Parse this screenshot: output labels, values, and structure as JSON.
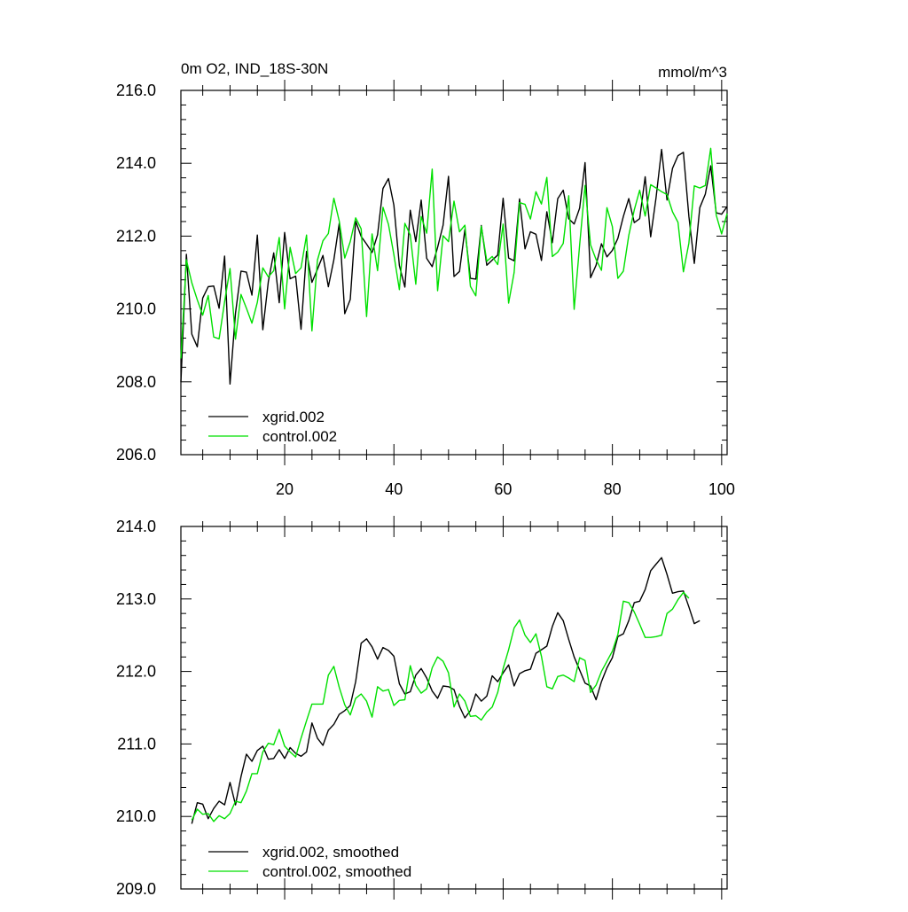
{
  "colors": {
    "xgrid": "#000000",
    "control": "#00e000"
  },
  "chart_data": [
    {
      "type": "line",
      "title": "0m O2, IND_18S-30N",
      "units": "mmol/m^3",
      "xlim": [
        1,
        101
      ],
      "ylim": [
        206.0,
        216.0
      ],
      "xticks": [
        20,
        40,
        60,
        80,
        100
      ],
      "xtick_labels": [
        "20",
        "40",
        "60",
        "80",
        "100"
      ],
      "yticks": [
        206.0,
        208.0,
        210.0,
        212.0,
        214.0,
        216.0
      ],
      "ytick_labels": [
        "206.0",
        "208.0",
        "210.0",
        "212.0",
        "214.0",
        "216.0"
      ],
      "legend_position": "bottom-left",
      "x_start": 1,
      "series": [
        {
          "name": "xgrid.002",
          "color": "#000000",
          "values": [
            207.99,
            211.5,
            209.31,
            208.96,
            210.3,
            210.61,
            210.63,
            210.02,
            211.45,
            207.94,
            209.89,
            211.04,
            211.01,
            210.38,
            212.03,
            209.43,
            210.75,
            211.54,
            210.17,
            212.1,
            210.83,
            210.9,
            209.44,
            211.58,
            210.73,
            211.09,
            211.47,
            210.61,
            211.35,
            212.35,
            209.87,
            210.26,
            212.41,
            211.99,
            211.78,
            211.55,
            212.04,
            213.31,
            213.58,
            212.85,
            211.19,
            210.6,
            212.71,
            211.85,
            212.99,
            211.39,
            211.16,
            211.69,
            212.3,
            213.64,
            210.89,
            211.03,
            212.18,
            210.84,
            210.82,
            212.29,
            211.2,
            211.34,
            211.48,
            213.04,
            211.4,
            211.32,
            213.02,
            211.65,
            212.12,
            212.05,
            211.33,
            212.67,
            211.82,
            213.03,
            213.26,
            212.48,
            212.33,
            212.77,
            214.02,
            210.86,
            211.2,
            211.79,
            211.43,
            211.61,
            211.94,
            212.54,
            213.03,
            212.37,
            212.48,
            213.63,
            211.98,
            213.06,
            214.38,
            212.99,
            213.86,
            214.21,
            214.3,
            212.54,
            211.25,
            212.78,
            213.15,
            213.93,
            212.64,
            212.6,
            212.81
          ]
        },
        {
          "name": "control.002",
          "color": "#00e000",
          "values": [
            208.64,
            211.35,
            210.72,
            210.25,
            209.83,
            210.37,
            209.23,
            209.18,
            210.2,
            211.11,
            209.17,
            210.4,
            210.02,
            209.61,
            210.18,
            211.13,
            210.88,
            211.05,
            211.96,
            210.0,
            211.69,
            210.97,
            211.13,
            212.03,
            209.4,
            211.34,
            211.87,
            212.07,
            213.04,
            212.41,
            211.4,
            211.85,
            212.5,
            212.2,
            209.79,
            212.06,
            211.05,
            212.79,
            212.32,
            211.49,
            210.53,
            212.35,
            212.03,
            210.68,
            212.54,
            212.08,
            213.84,
            210.5,
            212.01,
            211.85,
            212.96,
            212.12,
            212.3,
            210.62,
            210.36,
            212.27,
            211.31,
            211.44,
            211.22,
            212.33,
            210.16,
            211.0,
            212.92,
            212.87,
            212.47,
            213.22,
            212.88,
            213.61,
            211.44,
            211.56,
            211.8,
            213.11,
            209.99,
            211.76,
            213.39,
            211.76,
            211.36,
            211.06,
            212.78,
            212.26,
            210.84,
            211.04,
            212.02,
            212.72,
            213.26,
            212.55,
            213.41,
            213.32,
            213.22,
            213.14,
            212.67,
            212.38,
            211.02,
            211.81,
            213.38,
            213.32,
            213.39,
            214.41,
            212.58,
            212.06,
            212.62
          ]
        }
      ]
    },
    {
      "type": "line",
      "xlim": [
        1,
        101
      ],
      "ylim": [
        209.0,
        214.0
      ],
      "xticks": [
        20,
        40,
        60,
        80,
        100
      ],
      "yticks": [
        209.0,
        210.0,
        211.0,
        212.0,
        213.0,
        214.0
      ],
      "ytick_labels": [
        "209.0",
        "210.0",
        "211.0",
        "212.0",
        "213.0",
        "214.0"
      ],
      "legend_position": "bottom-left",
      "x_start": 3,
      "series": [
        {
          "name": "xgrid.002, smoothed",
          "color": "#000000",
          "values": [
            209.9,
            210.19,
            210.17,
            209.97,
            210.11,
            210.21,
            210.16,
            210.47,
            210.16,
            210.55,
            210.86,
            210.76,
            210.91,
            210.97,
            210.79,
            210.8,
            210.92,
            210.8,
            210.95,
            210.87,
            210.83,
            210.89,
            211.29,
            211.08,
            210.98,
            211.19,
            211.27,
            211.41,
            211.46,
            211.53,
            211.86,
            212.39,
            212.45,
            212.34,
            212.17,
            212.33,
            212.29,
            212.21,
            211.83,
            211.69,
            211.72,
            211.95,
            212.04,
            211.91,
            211.73,
            211.63,
            211.8,
            211.79,
            211.75,
            211.52,
            211.36,
            211.46,
            211.69,
            211.59,
            211.66,
            211.94,
            211.86,
            211.98,
            212.09,
            211.8,
            211.97,
            212.01,
            212.03,
            212.25,
            212.3,
            212.35,
            212.62,
            212.81,
            212.7,
            212.44,
            212.2,
            212.02,
            211.84,
            211.8,
            211.61,
            211.86,
            212.05,
            212.19,
            212.48,
            212.52,
            212.7,
            212.95,
            212.97,
            213.13,
            213.39,
            213.48,
            213.57,
            213.34,
            213.08,
            213.1,
            213.11,
            212.89,
            212.66,
            212.7
          ]
        },
        {
          "name": "control.002, smoothed",
          "color": "#00e000",
          "values": [
            209.95,
            210.1,
            210.03,
            210.04,
            209.93,
            210.01,
            209.97,
            210.04,
            210.21,
            210.19,
            210.35,
            210.59,
            210.59,
            210.89,
            211.01,
            210.99,
            211.2,
            210.97,
            210.89,
            210.82,
            211.08,
            211.32,
            211.55,
            211.55,
            211.55,
            211.95,
            212.07,
            211.78,
            211.54,
            211.4,
            211.63,
            211.69,
            211.59,
            211.37,
            211.79,
            211.73,
            211.75,
            211.53,
            211.6,
            211.61,
            212.08,
            211.81,
            211.7,
            211.76,
            212.05,
            212.2,
            212.14,
            211.98,
            211.51,
            211.69,
            211.59,
            211.38,
            211.39,
            211.33,
            211.44,
            211.51,
            211.71,
            212.04,
            212.3,
            212.6,
            212.71,
            212.5,
            212.4,
            212.52,
            212.21,
            211.79,
            211.76,
            211.93,
            211.95,
            211.91,
            211.86,
            212.19,
            212.15,
            211.71,
            211.81,
            212.0,
            212.14,
            212.28,
            212.51,
            212.97,
            212.95,
            212.82,
            212.65,
            212.47,
            212.47,
            212.48,
            212.5,
            212.8,
            212.86,
            212.99,
            213.09,
            213.01
          ]
        }
      ]
    }
  ]
}
